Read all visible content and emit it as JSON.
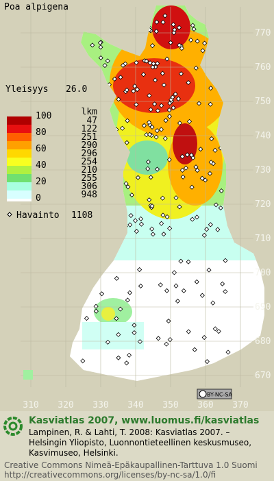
{
  "title": "Poa alpigena",
  "frequency": {
    "label": "Yleisyys",
    "value": "26.0"
  },
  "legend": {
    "levels": [
      "100",
      "80",
      "60",
      "40",
      "20",
      "0"
    ],
    "count_label": "lkm",
    "counts": [
      "47",
      "122",
      "251",
      "290",
      "296",
      "254",
      "210",
      "255",
      "306",
      "948"
    ]
  },
  "observations": {
    "label": "Havainto",
    "count": "1108"
  },
  "grid": {
    "y_labels": [
      770,
      760,
      750,
      740,
      730,
      720,
      710,
      700,
      690,
      680,
      670
    ],
    "x_labels": [
      310,
      320,
      330,
      340,
      350,
      360,
      370
    ]
  },
  "license_badge": "BY-NC-SA",
  "footer": {
    "heading": "Kasviatlas 2007, www.luomus.fi/kasviatlas",
    "citation": [
      "Lampinen, R. & Lahti, T. 2008: Kasviatlas 2007. –",
      "Helsingin Yliopisto, Luonnontieteellinen keskusmuseo,",
      "Kasvimuseo, Helsinki."
    ],
    "license": [
      "Creative Commons Nimeä-Epäkaupallinen-Tarttuva 1.0 Suomi",
      "http://creativecommons.org/licenses/by-nc-sa/1.0/fi"
    ]
  }
}
